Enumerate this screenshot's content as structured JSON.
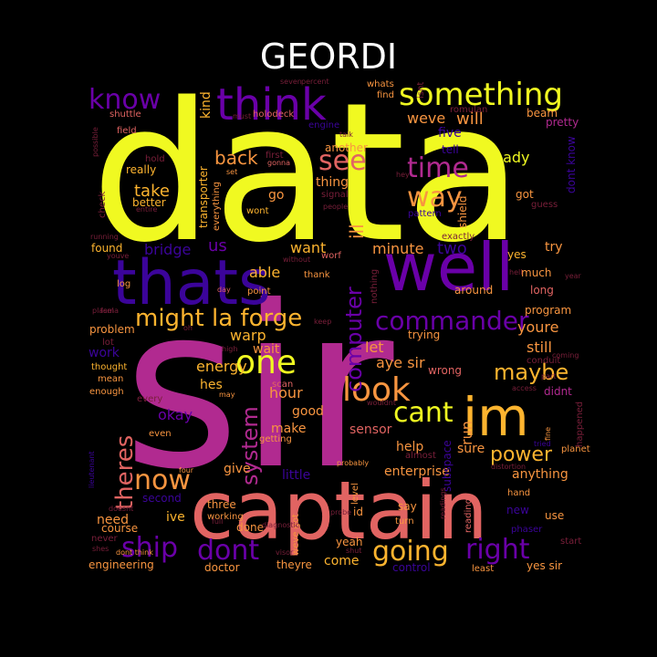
{
  "title": "GEORDI",
  "palette": {
    "background": "#000000",
    "yellow": "#f0f921",
    "gold": "#fdb42f",
    "orange": "#f89540",
    "salmon": "#e16462",
    "magenta": "#b12a90",
    "purple": "#6a00a8",
    "indigo": "#3b049a",
    "navy": "#1c0c73",
    "darkred": "#7a1f3a"
  },
  "words": [
    "data",
    "sir",
    "captain",
    "im",
    "well",
    "thats",
    "think",
    "something",
    "know",
    "time",
    "see",
    "way",
    "one",
    "look",
    "cant",
    "commander",
    "might la forge",
    "ship",
    "dont",
    "going",
    "right",
    "now",
    "theres",
    "maybe",
    "computer",
    "system",
    "power",
    "back",
    "take",
    "ill",
    "weve",
    "will",
    "ready",
    "us",
    "bridge",
    "two",
    "want",
    "minute",
    "able",
    "energy",
    "warp",
    "let",
    "still",
    "youre",
    "hour",
    "okay",
    "good",
    "make",
    "sensor",
    "sure",
    "enterprise",
    "anything",
    "give",
    "little",
    "second",
    "ive",
    "need",
    "three",
    "done",
    "shuttle",
    "field",
    "five",
    "beam",
    "pretty",
    "holodeck",
    "engine",
    "really",
    "better",
    "go",
    "thing",
    "got",
    "kind",
    "transporter",
    "wont",
    "another",
    "tell",
    "dont know",
    "shield",
    "pattern",
    "try",
    "yes",
    "much",
    "long",
    "found",
    "log",
    "thank",
    "around",
    "point",
    "day",
    "program",
    "problem",
    "work",
    "thought",
    "mean",
    "enough",
    "even",
    "hes",
    "wait",
    "scan",
    "subspace",
    "run",
    "help",
    "aye sir",
    "didnt",
    "wrong",
    "reading",
    "say",
    "id",
    "level",
    "come",
    "theyre",
    "yeah",
    "control",
    "least",
    "yes sir",
    "new",
    "use",
    "hand",
    "phaser",
    "course",
    "engineering",
    "doctor",
    "dont think",
    "working",
    "visor",
    "weve got",
    "lieutenant",
    "happened",
    "planet",
    "fine",
    "conduit",
    "access",
    "part",
    "tried",
    "probably",
    "getting",
    "everything",
    "gonna",
    "set",
    "first",
    "talk",
    "people",
    "hey",
    "guess",
    "signal",
    "romulan",
    "isnt",
    "whats",
    "find",
    "exactly",
    "hold",
    "check",
    "running",
    "youve",
    "possible",
    "entire",
    "plasma",
    "feel",
    "lot",
    "every",
    "may",
    "high",
    "keep",
    "trying",
    "nothing",
    "worf",
    "without",
    "hell",
    "year",
    "seven",
    "percent",
    "must",
    "distortion",
    "almost",
    "diagnostic",
    "shut",
    "turn",
    "start",
    "never",
    "shes",
    "doesnt",
    "four",
    "full",
    "probe",
    "coming",
    "oh",
    "wouldnt",
    "readings"
  ]
}
